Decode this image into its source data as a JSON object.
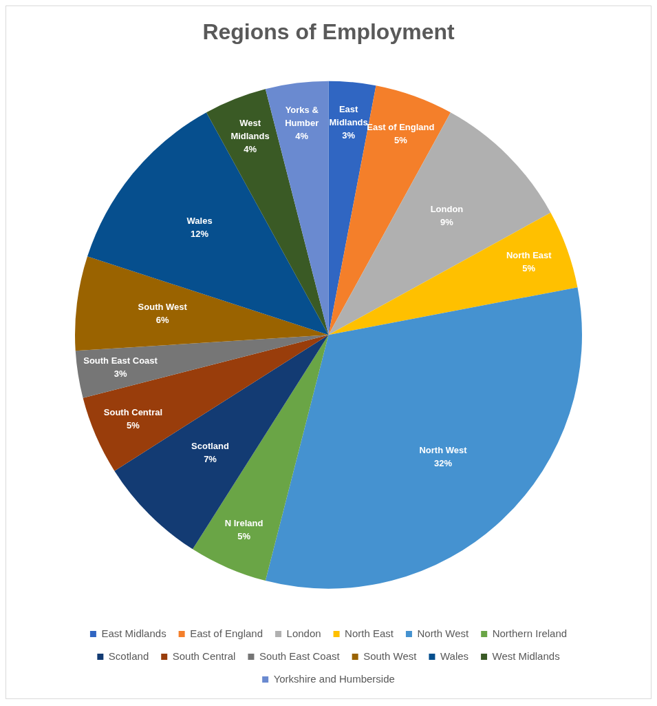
{
  "chart_data": {
    "type": "pie",
    "title": "Regions of Employment",
    "categories": [
      "East Midlands",
      "East of England",
      "London",
      "North East",
      "North West",
      "Northern Ireland",
      "Scotland",
      "South Central",
      "South East Coast",
      "South West",
      "Wales",
      "West Midlands",
      "Yorkshire and Humberside"
    ],
    "values": [
      3,
      5,
      9,
      5,
      32,
      5,
      7,
      5,
      3,
      6,
      12,
      4,
      4
    ],
    "colors": [
      "#3066c2",
      "#f47f2a",
      "#b0b0b0",
      "#ffc000",
      "#4592d0",
      "#6aa546",
      "#133b73",
      "#993d0b",
      "#767676",
      "#9a6300",
      "#064f8e",
      "#3a5a25",
      "#6a8ad0"
    ],
    "value_labels": [
      "East\nMidlands\n3%",
      "East of England\n5%",
      "London\n9%",
      "North East\n5%",
      "North West\n32%",
      "N Ireland\n5%",
      "Scotland\n7%",
      "South Central\n5%",
      "South East Coast\n3%",
      "South West\n6%",
      "Wales\n12%",
      "West\nMidlands\n4%",
      "Yorks &\nHumber\n4%"
    ],
    "legend": "bottom"
  }
}
